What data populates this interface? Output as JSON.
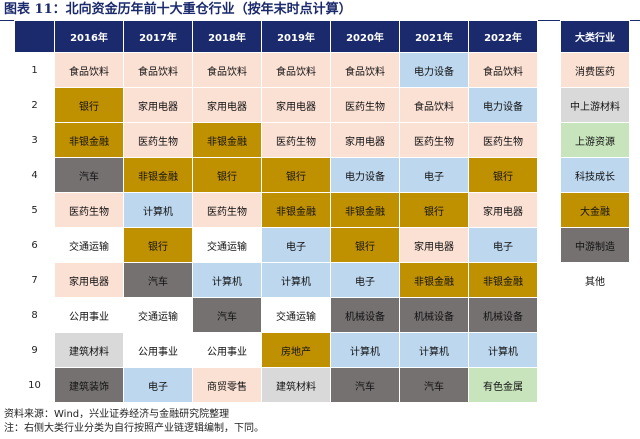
{
  "title": "图表 11：北向资金历年前十大重仓行业（按年末时点计算）",
  "years": [
    "2016年",
    "2017年",
    "2018年",
    "2019年",
    "2020年",
    "2021年",
    "2022年"
  ],
  "rows": [
    {
      "rank": "1",
      "cells": [
        {
          "text": "食品饮料",
          "cat": "consumer"
        },
        {
          "text": "食品饮料",
          "cat": "consumer"
        },
        {
          "text": "食品饮料",
          "cat": "consumer"
        },
        {
          "text": "食品饮料",
          "cat": "consumer"
        },
        {
          "text": "食品饮料",
          "cat": "consumer"
        },
        {
          "text": "电力设备",
          "cat": "tech"
        },
        {
          "text": "食品饮料",
          "cat": "consumer"
        }
      ]
    },
    {
      "rank": "2",
      "cells": [
        {
          "text": "银行",
          "cat": "finance"
        },
        {
          "text": "家用电器",
          "cat": "consumer"
        },
        {
          "text": "家用电器",
          "cat": "consumer"
        },
        {
          "text": "家用电器",
          "cat": "consumer"
        },
        {
          "text": "医药生物",
          "cat": "consumer"
        },
        {
          "text": "食品饮料",
          "cat": "consumer"
        },
        {
          "text": "电力设备",
          "cat": "tech"
        }
      ]
    },
    {
      "rank": "3",
      "cells": [
        {
          "text": "非银金融",
          "cat": "finance"
        },
        {
          "text": "医药生物",
          "cat": "consumer"
        },
        {
          "text": "非银金融",
          "cat": "finance"
        },
        {
          "text": "医药生物",
          "cat": "consumer"
        },
        {
          "text": "家用电器",
          "cat": "consumer"
        },
        {
          "text": "医药生物",
          "cat": "consumer"
        },
        {
          "text": "医药生物",
          "cat": "consumer"
        }
      ]
    },
    {
      "rank": "4",
      "cells": [
        {
          "text": "汽车",
          "cat": "midmfg"
        },
        {
          "text": "非银金融",
          "cat": "finance"
        },
        {
          "text": "银行",
          "cat": "finance"
        },
        {
          "text": "银行",
          "cat": "finance"
        },
        {
          "text": "电力设备",
          "cat": "tech"
        },
        {
          "text": "电子",
          "cat": "tech"
        },
        {
          "text": "银行",
          "cat": "finance"
        }
      ]
    },
    {
      "rank": "5",
      "cells": [
        {
          "text": "医药生物",
          "cat": "consumer"
        },
        {
          "text": "计算机",
          "cat": "tech"
        },
        {
          "text": "医药生物",
          "cat": "consumer"
        },
        {
          "text": "非银金融",
          "cat": "finance"
        },
        {
          "text": "非银金融",
          "cat": "finance"
        },
        {
          "text": "银行",
          "cat": "finance"
        },
        {
          "text": "家用电器",
          "cat": "consumer"
        }
      ]
    },
    {
      "rank": "6",
      "cells": [
        {
          "text": "交通运输",
          "cat": "other"
        },
        {
          "text": "银行",
          "cat": "finance"
        },
        {
          "text": "交通运输",
          "cat": "other"
        },
        {
          "text": "电子",
          "cat": "tech"
        },
        {
          "text": "银行",
          "cat": "finance"
        },
        {
          "text": "家用电器",
          "cat": "consumer"
        },
        {
          "text": "电子",
          "cat": "tech"
        }
      ]
    },
    {
      "rank": "7",
      "cells": [
        {
          "text": "家用电器",
          "cat": "consumer"
        },
        {
          "text": "汽车",
          "cat": "midmfg"
        },
        {
          "text": "计算机",
          "cat": "tech"
        },
        {
          "text": "计算机",
          "cat": "tech"
        },
        {
          "text": "电子",
          "cat": "tech"
        },
        {
          "text": "非银金融",
          "cat": "finance"
        },
        {
          "text": "非银金融",
          "cat": "finance"
        }
      ]
    },
    {
      "rank": "8",
      "cells": [
        {
          "text": "公用事业",
          "cat": "other"
        },
        {
          "text": "交通运输",
          "cat": "other"
        },
        {
          "text": "汽车",
          "cat": "midmfg"
        },
        {
          "text": "交通运输",
          "cat": "other"
        },
        {
          "text": "机械设备",
          "cat": "midmfg"
        },
        {
          "text": "机械设备",
          "cat": "midmfg"
        },
        {
          "text": "机械设备",
          "cat": "midmfg"
        }
      ]
    },
    {
      "rank": "9",
      "cells": [
        {
          "text": "建筑材料",
          "cat": "midup"
        },
        {
          "text": "公用事业",
          "cat": "other"
        },
        {
          "text": "公用事业",
          "cat": "other"
        },
        {
          "text": "房地产",
          "cat": "finance"
        },
        {
          "text": "计算机",
          "cat": "tech"
        },
        {
          "text": "计算机",
          "cat": "tech"
        },
        {
          "text": "计算机",
          "cat": "tech"
        }
      ]
    },
    {
      "rank": "10",
      "cells": [
        {
          "text": "建筑装饰",
          "cat": "midmfg"
        },
        {
          "text": "电子",
          "cat": "tech"
        },
        {
          "text": "商贸零售",
          "cat": "consumer"
        },
        {
          "text": "建筑材料",
          "cat": "midup"
        },
        {
          "text": "汽车",
          "cat": "midmfg"
        },
        {
          "text": "汽车",
          "cat": "midmfg"
        },
        {
          "text": "有色金属",
          "cat": "upstream"
        }
      ]
    }
  ],
  "legend": {
    "header": "大类行业",
    "items": [
      {
        "label": "消费医药",
        "cat": "consumer"
      },
      {
        "label": "中上游材料",
        "cat": "midup"
      },
      {
        "label": "上游资源",
        "cat": "upstream"
      },
      {
        "label": "科技成长",
        "cat": "tech"
      },
      {
        "label": "大金融",
        "cat": "finance"
      },
      {
        "label": "中游制造",
        "cat": "midmfg"
      },
      {
        "label": "其他",
        "cat": "other"
      }
    ]
  },
  "colors": {
    "header_bg": "#1a2a6c",
    "consumer": "#fbe0d4",
    "midup": "#d9d9d9",
    "upstream": "#c7e4bc",
    "tech": "#bdd7ee",
    "finance": "#bf9000",
    "midmfg": "#767171",
    "other": "#ffffff"
  },
  "notes": {
    "source": "资料来源：Wind，兴业证券经济与金融研究院整理",
    "note": "注：右侧大类行业分类为自行按照产业链逻辑编制，下同。"
  }
}
